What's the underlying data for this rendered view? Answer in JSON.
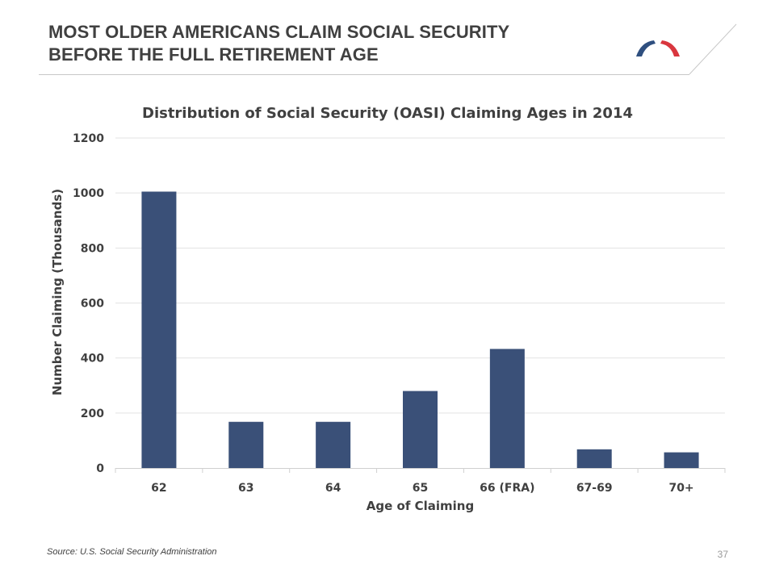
{
  "slide": {
    "title_line1": "MOST OLDER AMERICANS CLAIM SOCIAL SECURITY",
    "title_line2": "BEFORE THE FULL RETIREMENT AGE",
    "source": "Source: U.S. Social Security Administration",
    "page_number": "37"
  },
  "colors": {
    "bar": "#3a5078",
    "title": "#404040",
    "logo_blue": "#2f4f7f",
    "logo_red": "#d9363e"
  },
  "chart_data": {
    "type": "bar",
    "title": "Distribution of Social Security (OASI) Claiming Ages in 2014",
    "xlabel": "Age of Claiming",
    "ylabel": "Number Claiming (Thousands)",
    "categories": [
      "62",
      "63",
      "64",
      "65",
      "66 (FRA)",
      "67-69",
      "70+"
    ],
    "values": [
      1005,
      168,
      168,
      280,
      433,
      68,
      57
    ],
    "ylim": [
      0,
      1200
    ],
    "yticks": [
      0,
      200,
      400,
      600,
      800,
      1000,
      1200
    ],
    "grid": true,
    "legend": "none"
  }
}
